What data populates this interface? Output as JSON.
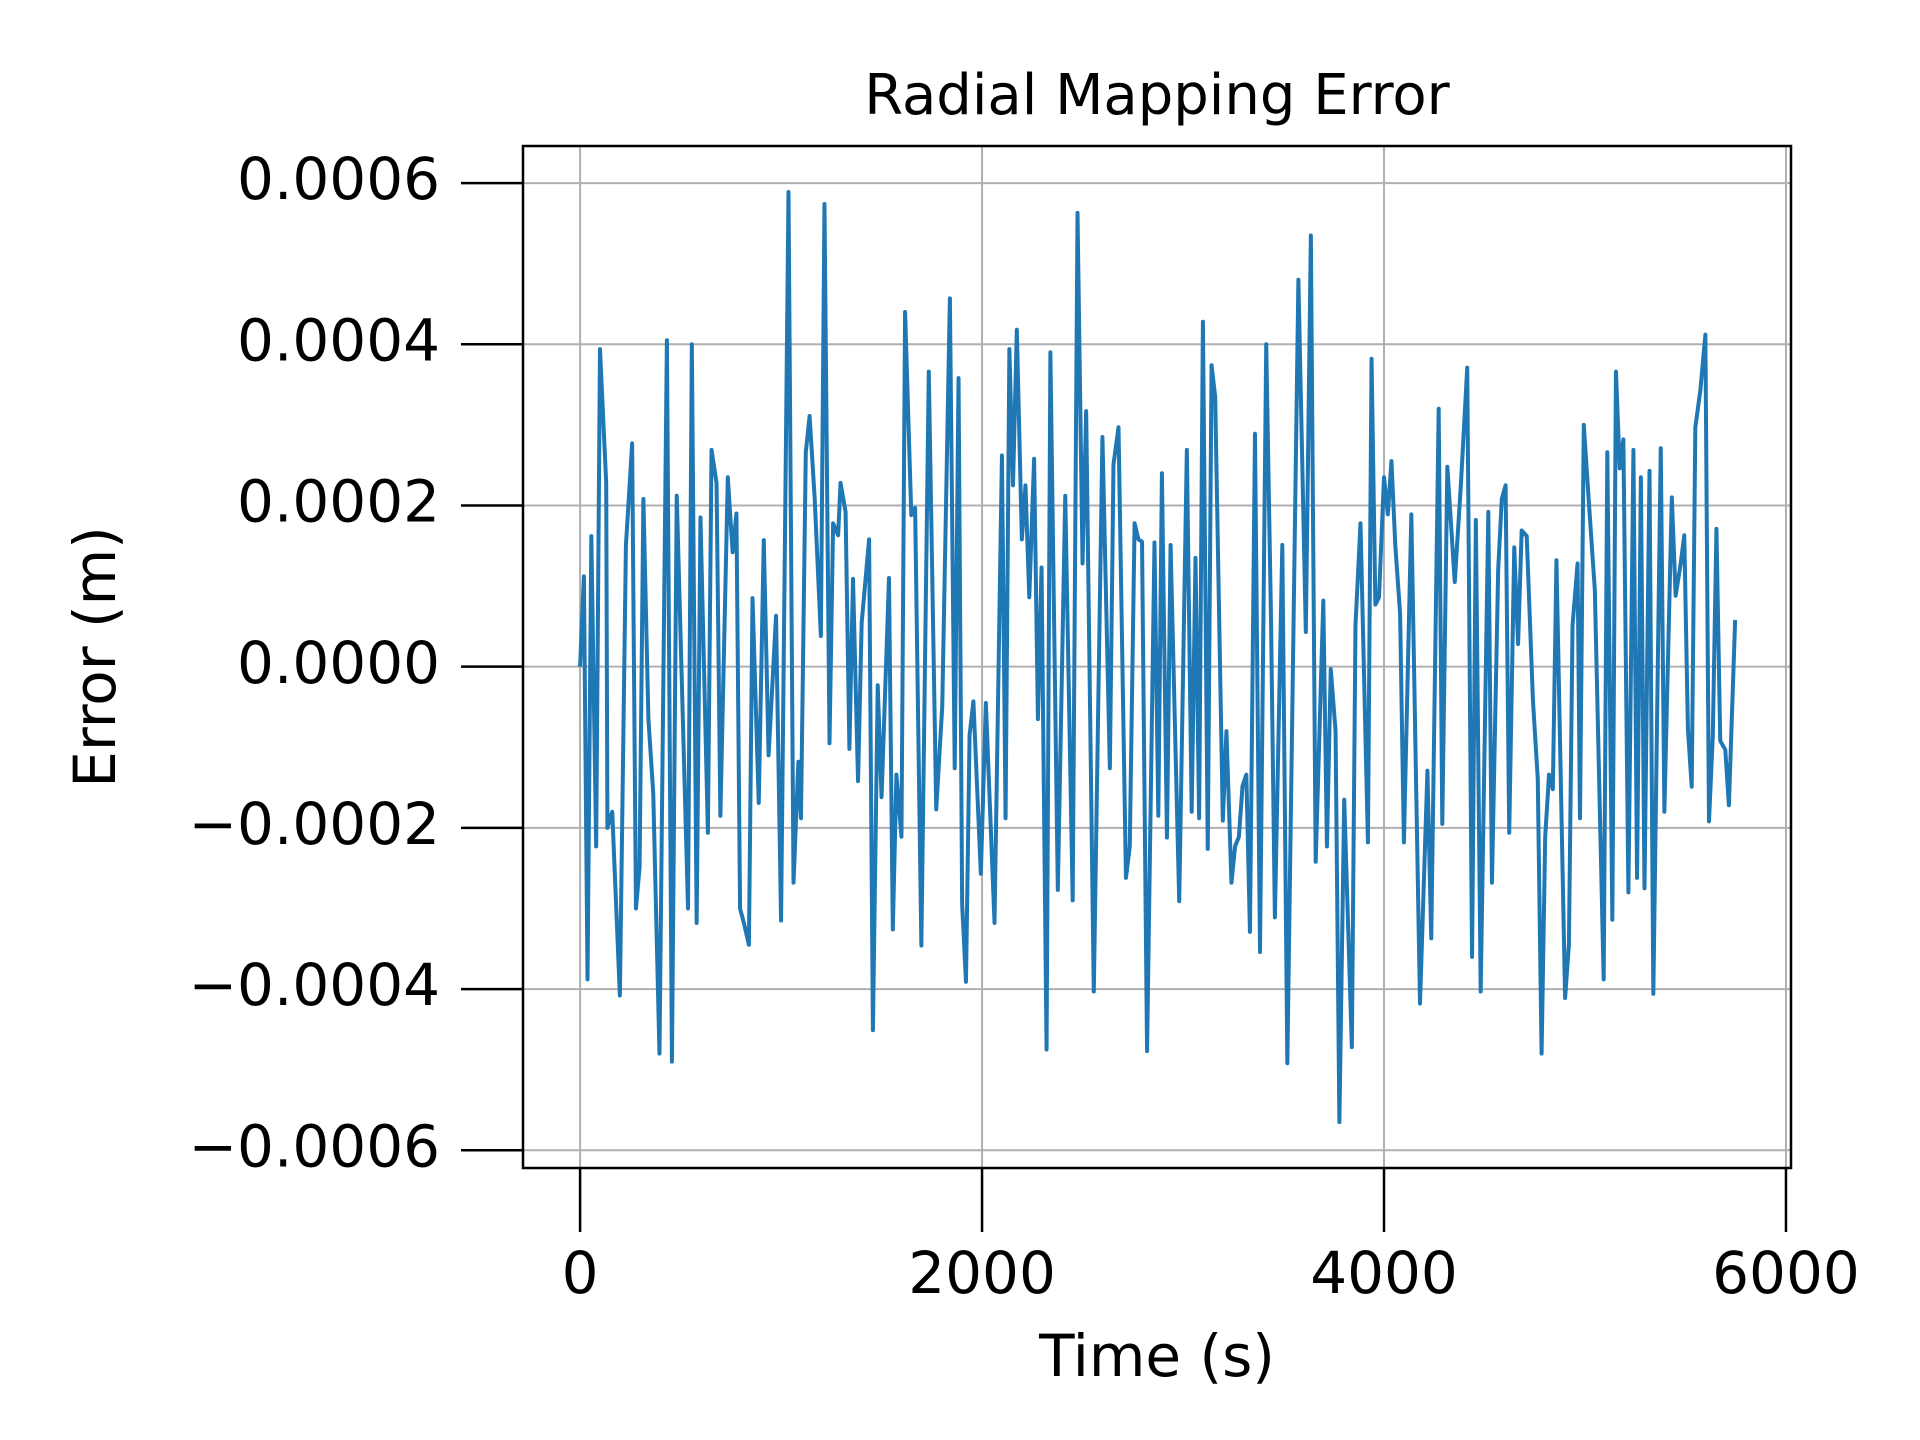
{
  "chart_data": {
    "type": "line",
    "title": "Radial Mapping Error",
    "x_label": "Time (s)",
    "y_label": "Error (m)",
    "color": "#1f77b4",
    "grid": true,
    "xlim": [
      -284,
      6025
    ],
    "ylim": [
      -0.000622,
      0.000646
    ],
    "xticks": [
      0,
      2000,
      4000,
      6000
    ],
    "yticks": [
      {
        "value": -0.0006,
        "label": "−0.0006"
      },
      {
        "value": -0.0004,
        "label": "−0.0004"
      },
      {
        "value": -0.0002,
        "label": "−0.0002"
      },
      {
        "value": 0,
        "label": "0.0000"
      },
      0.0002,
      0.0004,
      0.0006
    ],
    "x": [
      0,
      19,
      37,
      56,
      80,
      99,
      130,
      136,
      160,
      198,
      228,
      259,
      278,
      296,
      315,
      340,
      364,
      395,
      432,
      457,
      481,
      537,
      556,
      580,
      599,
      636,
      654,
      679,
      698,
      735,
      759,
      778,
      796,
      815,
      840,
      858,
      889,
      914,
      938,
      975,
      1000,
      1037,
      1062,
      1086,
      1099,
      1123,
      1142,
      1167,
      1198,
      1216,
      1241,
      1259,
      1284,
      1296,
      1321,
      1340,
      1358,
      1383,
      1401,
      1438,
      1457,
      1481,
      1500,
      1537,
      1556,
      1574,
      1599,
      1617,
      1648,
      1667,
      1698,
      1735,
      1772,
      1802,
      1840,
      1864,
      1883,
      1901,
      1920,
      1938,
      1957,
      1994,
      2019,
      2062,
      2099,
      2117,
      2136,
      2154,
      2173,
      2198,
      2216,
      2235,
      2259,
      2278,
      2296,
      2321,
      2340,
      2377,
      2414,
      2451,
      2475,
      2500,
      2518,
      2556,
      2599,
      2636,
      2654,
      2679,
      2716,
      2735,
      2759,
      2778,
      2796,
      2821,
      2858,
      2877,
      2895,
      2920,
      2938,
      2981,
      3019,
      3043,
      3062,
      3080,
      3099,
      3123,
      3142,
      3160,
      3198,
      3216,
      3241,
      3259,
      3278,
      3296,
      3315,
      3333,
      3358,
      3383,
      3414,
      3438,
      3457,
      3494,
      3519,
      3574,
      3611,
      3636,
      3660,
      3698,
      3716,
      3735,
      3759,
      3778,
      3802,
      3840,
      3858,
      3883,
      3920,
      3938,
      3957,
      3975,
      4000,
      4019,
      4037,
      4056,
      4080,
      4099,
      4136,
      4179,
      4216,
      4235,
      4272,
      4290,
      4315,
      4352,
      4383,
      4414,
      4438,
      4457,
      4481,
      4519,
      4537,
      4568,
      4586,
      4605,
      4623,
      4648,
      4667,
      4685,
      4710,
      4741,
      4765,
      4784,
      4802,
      4821,
      4840,
      4858,
      4901,
      4920,
      4938,
      4963,
      4975,
      4994,
      5019,
      5049,
      5093,
      5111,
      5136,
      5154,
      5173,
      5191,
      5216,
      5241,
      5259,
      5278,
      5296,
      5321,
      5340,
      5377,
      5395,
      5432,
      5451,
      5475,
      5494,
      5512,
      5531,
      5549,
      5574,
      5599,
      5617,
      5636,
      5654,
      5673,
      5698,
      5716,
      5747
    ],
    "values": [
      0,
      0.000112,
      -0.000388,
      0.000162,
      -0.000223,
      0.000394,
      0.000228,
      -0.0002,
      -0.00018,
      -0.000408,
      0.00015,
      0.000277,
      -0.0003,
      -0.000249,
      0.000208,
      -6.5e-05,
      -0.000157,
      -0.00048,
      0.000405,
      -0.00049,
      0.000212,
      -0.0003,
      0.0004,
      -0.000318,
      0.000185,
      -0.000206,
      0.000269,
      0.000228,
      -0.000185,
      0.000235,
      0.000142,
      0.00019,
      -0.0003,
      -0.000318,
      -0.000345,
      8.5e-05,
      -0.000169,
      0.000157,
      -0.00011,
      6.3e-05,
      -0.000315,
      0.000589,
      -0.000268,
      -0.000118,
      -0.000188,
      0.000266,
      0.000311,
      0.00021,
      3.8e-05,
      0.000574,
      -9.5e-05,
      0.000178,
      0.000163,
      0.000228,
      0.000192,
      -0.000102,
      0.000109,
      -0.000142,
      5.4e-05,
      0.000158,
      -0.000451,
      -2.3e-05,
      -0.000162,
      0.00011,
      -0.000326,
      -0.000134,
      -0.000211,
      0.00044,
      0.000188,
      0.000197,
      -0.000346,
      0.000366,
      -0.000177,
      -4.9e-05,
      0.000457,
      -0.000126,
      0.000358,
      -0.000295,
      -0.000391,
      -8.5e-05,
      -4.3e-05,
      -0.000257,
      -4.5e-05,
      -0.000318,
      0.000262,
      -0.000188,
      0.000394,
      0.000225,
      0.000418,
      0.000158,
      0.000225,
      8.6e-05,
      0.000258,
      -6.5e-05,
      0.000123,
      -0.000475,
      0.00039,
      -0.000277,
      0.000212,
      -0.00029,
      0.000563,
      0.000128,
      0.000317,
      -0.000403,
      0.000285,
      -0.000126,
      0.000251,
      0.000297,
      -0.000262,
      -0.000223,
      0.000178,
      0.000158,
      0.000155,
      -0.000477,
      0.000154,
      -0.000185,
      0.00024,
      -0.000212,
      0.000151,
      -0.000291,
      0.000269,
      -0.00018,
      0.000135,
      -0.000188,
      0.000428,
      -0.000226,
      0.000374,
      0.000335,
      -0.000191,
      -8e-05,
      -0.000268,
      -0.000223,
      -0.000211,
      -0.000148,
      -0.000134,
      -0.000329,
      0.000289,
      -0.000354,
      0.0004,
      5.5e-05,
      -0.000311,
      0.000151,
      -0.000492,
      0.00048,
      4.3e-05,
      0.000535,
      -0.000242,
      8.2e-05,
      -0.000223,
      -3e-06,
      -8e-05,
      -0.000565,
      -0.000165,
      -0.000472,
      5.1e-05,
      0.000178,
      -0.000218,
      0.000382,
      7.7e-05,
      8.6e-05,
      0.000235,
      0.000189,
      0.000255,
      0.000151,
      6.6e-05,
      -0.000218,
      0.000189,
      -0.000418,
      -0.000129,
      -0.000337,
      0.00032,
      -0.000195,
      0.000248,
      0.000105,
      0.000228,
      0.000371,
      -0.00036,
      0.000182,
      -0.000403,
      0.000192,
      -0.000268,
      0.00012,
      0.000208,
      0.000225,
      -0.000206,
      0.000148,
      2.8e-05,
      0.000169,
      0.000162,
      -4.2e-05,
      -0.000139,
      -0.00048,
      -0.000211,
      -0.000134,
      -0.000152,
      0.000132,
      -0.000411,
      -0.000345,
      5.1e-05,
      0.000128,
      -0.000188,
      0.0003,
      0.000205,
      9.5e-05,
      -0.000388,
      0.000266,
      -0.000314,
      0.000366,
      0.000246,
      0.000282,
      -0.00028,
      0.000269,
      -0.000262,
      0.000235,
      -0.000275,
      0.000243,
      -0.000406,
      0.000271,
      -0.00018,
      0.00021,
      8.8e-05,
      0.000126,
      0.000163,
      -7.7e-05,
      -0.000149,
      0.000297,
      0.000343,
      0.000412,
      -0.000192,
      -8.5e-05,
      0.000171,
      -9.2e-05,
      -0.000103,
      -0.000172,
      5.8e-05
    ]
  }
}
